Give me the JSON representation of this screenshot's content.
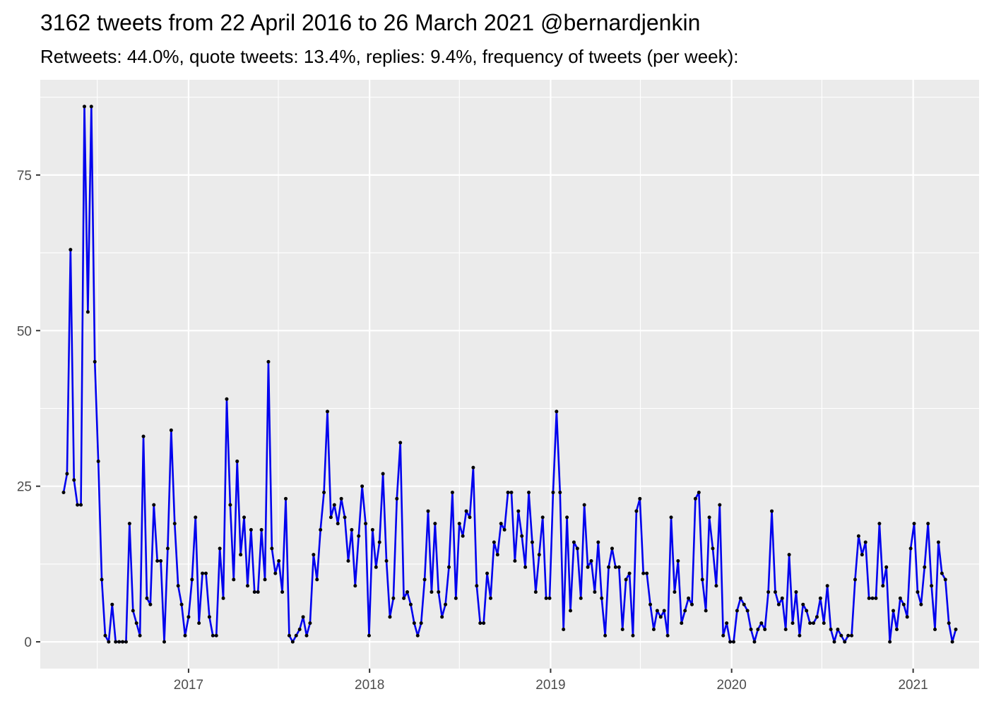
{
  "chart_data": {
    "type": "line",
    "title": "3162 tweets from 22 April 2016 to 26 March 2021 @bernardjenkin",
    "subtitle": "Retweets: 44.0%, quote tweets: 13.4%, replies: 9.4%, frequency of tweets (per week):",
    "xlabel": "",
    "ylabel": "",
    "x_start": "2016-04-24",
    "x_interval_days": 7,
    "xlim": [
      "2016-03-08",
      "2021-05-14"
    ],
    "ylim": [
      -4.3,
      90.3
    ],
    "x_ticks": [
      {
        "label": "2017",
        "date": "2017-01-01"
      },
      {
        "label": "2018",
        "date": "2018-01-01"
      },
      {
        "label": "2019",
        "date": "2019-01-01"
      },
      {
        "label": "2020",
        "date": "2020-01-01"
      },
      {
        "label": "2021",
        "date": "2021-01-01"
      }
    ],
    "y_ticks": [
      0,
      25,
      50,
      75
    ],
    "grid": true,
    "background_color": "#ebebeb",
    "grid_color": "#ffffff",
    "line_color": "#0000ee",
    "point_color": "#000000",
    "series": [
      {
        "values": [
          24,
          27,
          63,
          26,
          22,
          22,
          86,
          53,
          86,
          45,
          29,
          10,
          1,
          0,
          6,
          0,
          0,
          0,
          0,
          19,
          5,
          3,
          1,
          33,
          7,
          6,
          22,
          13,
          13,
          0,
          15,
          34,
          19,
          9,
          6,
          1,
          4,
          10,
          20,
          3,
          11,
          11,
          4,
          1,
          1,
          15,
          7,
          39,
          22,
          10,
          29,
          14,
          20,
          9,
          18,
          8,
          8,
          18,
          10,
          45,
          15,
          11,
          13,
          8,
          23,
          1,
          0,
          1,
          2,
          4,
          1,
          3,
          14,
          10,
          18,
          24,
          37,
          20,
          22,
          19,
          23,
          20,
          13,
          18,
          9,
          17,
          25,
          19,
          1,
          18,
          12,
          16,
          27,
          13,
          4,
          7,
          23,
          32,
          7,
          8,
          6,
          3,
          1,
          3,
          10,
          21,
          8,
          19,
          8,
          4,
          6,
          12,
          24,
          7,
          19,
          17,
          21,
          20,
          28,
          9,
          3,
          3,
          11,
          7,
          16,
          14,
          19,
          18,
          24,
          24,
          13,
          21,
          17,
          12,
          24,
          16,
          8,
          14,
          20,
          7,
          7,
          24,
          37,
          24,
          2,
          20,
          5,
          16,
          15,
          7,
          22,
          12,
          13,
          8,
          16,
          7,
          1,
          12,
          15,
          12,
          12,
          2,
          10,
          11,
          1,
          21,
          23,
          11,
          11,
          6,
          2,
          5,
          4,
          5,
          1,
          20,
          8,
          13,
          3,
          5,
          7,
          6,
          23,
          24,
          10,
          5,
          20,
          15,
          9,
          22,
          1,
          3,
          0,
          0,
          5,
          7,
          6,
          5,
          2,
          0,
          2,
          3,
          2,
          8,
          21,
          8,
          6,
          7,
          2,
          14,
          3,
          8,
          1,
          6,
          5,
          3,
          3,
          4,
          7,
          3,
          9,
          2,
          0,
          2,
          1,
          0,
          1,
          1,
          10,
          17,
          14,
          16,
          7,
          7,
          7,
          19,
          9,
          12,
          0,
          5,
          2,
          7,
          6,
          4,
          15,
          19,
          8,
          6,
          12,
          19,
          9,
          2,
          16,
          11,
          10,
          3,
          0,
          2
        ]
      }
    ]
  }
}
